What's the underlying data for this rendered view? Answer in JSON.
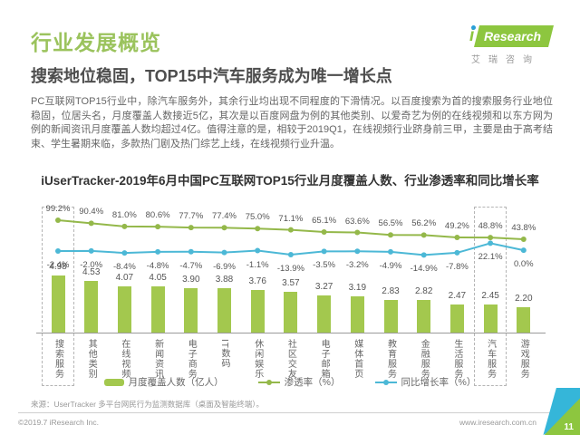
{
  "page": {
    "title": "行业发展概览",
    "subtitle": "搜索地位稳固，TOP15中汽车服务成为唯一增长点",
    "body": "PC互联网TOP15行业中，除汽车服务外，其余行业均出现不同程度的下滑情况。以百度搜索为首的搜索服务行业地位稳固，位居头名，月度覆盖人数接近5亿，其次是以百度网盘为例的其他类别、以爱奇艺为例的在线视频和以东方网为例的新闻资讯月度覆盖人数均超过4亿。值得注意的是，相较于2019Q1，在线视频行业跻身前三甲，主要是由于高考结束、学生暑期来临，多款热门剧及热门综艺上线，在线视频行业升温。",
    "source": "来源：UserTracker 多平台网民行为监测数据库（桌面及智能终端）。",
    "footer_left": "©2019.7 iResearch Inc.",
    "footer_right": "www.iresearch.com.cn",
    "page_number": "11"
  },
  "logo": {
    "brand_prefix": "i",
    "brand": "Research",
    "chinese": "艾瑞咨询"
  },
  "colors": {
    "accent_green": "#9bc35d",
    "bar_green": "#a3c84e",
    "line_green": "#94b84a",
    "line_blue": "#4cb8d6",
    "logo_green": "#8dc63f",
    "logo_blue": "#2a9fd8"
  },
  "chart_data": {
    "type": "bar",
    "title": "iUserTracker-2019年6月中国PC互联网TOP15行业月度覆盖人数、行业渗透率和同比增长率",
    "categories": [
      "搜索服务",
      "其他类别",
      "在线视频",
      "新闻资讯",
      "电子商务",
      "IT数码",
      "休闲娱乐",
      "社区交友",
      "电子邮箱",
      "媒体首页",
      "教育服务",
      "金融服务",
      "生活服务",
      "汽车服务",
      "游戏服务"
    ],
    "series": [
      {
        "name": "月度覆盖人数（亿人）",
        "type": "bar",
        "color": "#a3c84e",
        "values": [
          4.98,
          4.53,
          4.07,
          4.05,
          3.9,
          3.88,
          3.76,
          3.57,
          3.27,
          3.19,
          2.83,
          2.82,
          2.47,
          2.45,
          2.2
        ]
      },
      {
        "name": "渗透率（%）",
        "type": "line",
        "color": "#94b84a",
        "values": [
          99.2,
          90.4,
          81.0,
          80.6,
          77.7,
          77.4,
          75.0,
          71.1,
          65.1,
          63.6,
          56.5,
          56.2,
          49.2,
          48.8,
          43.8
        ]
      },
      {
        "name": "同比增长率（%）",
        "type": "line",
        "color": "#4cb8d6",
        "values": [
          -2.4,
          -2.0,
          -8.4,
          -4.8,
          -4.7,
          -6.9,
          -1.1,
          -13.9,
          -3.5,
          -3.2,
          -4.9,
          -14.9,
          -7.8,
          22.1,
          0.0
        ]
      }
    ],
    "highlighted_categories": [
      "搜索服务",
      "汽车服务"
    ],
    "legend_position": "bottom",
    "grid": false
  }
}
